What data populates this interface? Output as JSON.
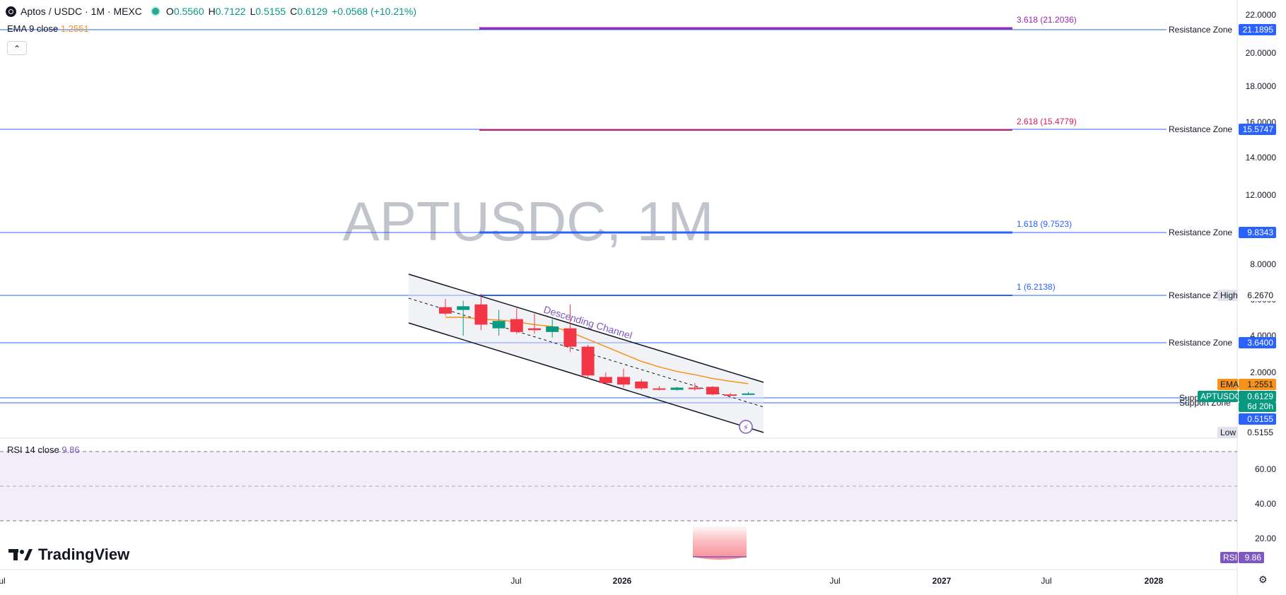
{
  "header": {
    "symbol": "Aptos / USDC · 1M · MEXC",
    "open_label": "O",
    "open": "0.5560",
    "high_label": "H",
    "high": "0.7122",
    "low_label": "L",
    "low": "0.5155",
    "close_label": "C",
    "close": "0.6129",
    "change": "+0.0568 (+10.21%)"
  },
  "ema_legend": {
    "label": "EMA 9 close",
    "value": "1.2551"
  },
  "rsi_legend": {
    "label": "RSI 14 close",
    "value": "9.86"
  },
  "watermark": "APTUSDC, 1M",
  "brand": "TradingView",
  "collapse_glyph": "⌃",
  "colors": {
    "bull": "#089981",
    "bear": "#f23645",
    "ema": "#f7931a",
    "zone_line": "#2962ff",
    "rsi": "#7e57c2",
    "fib_3618": "#9c27b0",
    "fib_2618": "#d81b60",
    "fib_1618": "#2962ff"
  },
  "chart_data": {
    "type": "candlestick",
    "symbol": "APTUSDC",
    "interval": "1M",
    "exchange": "MEXC",
    "y_axis_labels": [
      "22.0000",
      "20.0000",
      "18.0000",
      "16.0000",
      "14.0000",
      "12.0000",
      "8.0000",
      "6.0000",
      "4.0000",
      "2.0000"
    ],
    "x_axis_labels": [
      "Jul",
      "2026",
      "Jul",
      "2027",
      "Jul",
      "2028",
      "Jul"
    ],
    "candles": [
      {
        "o": 5.55,
        "h": 6.0,
        "l": 5.1,
        "c": 5.2
      },
      {
        "o": 5.4,
        "h": 5.9,
        "l": 4.0,
        "c": 5.6
      },
      {
        "o": 5.7,
        "h": 6.3,
        "l": 4.3,
        "c": 4.6
      },
      {
        "o": 4.4,
        "h": 5.4,
        "l": 4.0,
        "c": 4.8
      },
      {
        "o": 4.9,
        "h": 5.5,
        "l": 4.1,
        "c": 4.2
      },
      {
        "o": 4.4,
        "h": 5.2,
        "l": 4.1,
        "c": 4.3
      },
      {
        "o": 4.2,
        "h": 4.9,
        "l": 3.9,
        "c": 4.5
      },
      {
        "o": 4.4,
        "h": 5.7,
        "l": 3.1,
        "c": 3.4
      },
      {
        "o": 3.4,
        "h": 3.5,
        "l": 1.6,
        "c": 1.8
      },
      {
        "o": 1.7,
        "h": 2.0,
        "l": 1.2,
        "c": 1.3
      },
      {
        "o": 1.7,
        "h": 2.2,
        "l": 1.0,
        "c": 1.2
      },
      {
        "o": 1.4,
        "h": 1.55,
        "l": 0.85,
        "c": 0.95
      },
      {
        "o": 0.95,
        "h": 1.1,
        "l": 0.8,
        "c": 0.88
      },
      {
        "o": 0.85,
        "h": 1.05,
        "l": 0.8,
        "c": 1.0
      },
      {
        "o": 1.0,
        "h": 1.3,
        "l": 0.8,
        "c": 0.9
      },
      {
        "o": 1.05,
        "h": 1.1,
        "l": 0.5,
        "c": 0.55
      },
      {
        "o": 0.55,
        "h": 0.65,
        "l": 0.5,
        "c": 0.52
      },
      {
        "o": 0.556,
        "h": 0.7122,
        "l": 0.5155,
        "c": 0.6129
      }
    ],
    "ema": [
      5.0,
      5.0,
      4.9,
      4.85,
      4.75,
      4.6,
      4.5,
      4.2,
      3.8,
      3.4,
      3.0,
      2.6,
      2.3,
      2.05,
      1.85,
      1.6,
      1.42,
      1.2551
    ],
    "resistance_zones": [
      {
        "label": "Resistance Zone",
        "value": "21.1895"
      },
      {
        "label": "Resistance Zone",
        "value": "15.5747"
      },
      {
        "label": "Resistance Zone",
        "value": "9.8343"
      },
      {
        "label": "Resistance Zone",
        "value": "6.2670"
      },
      {
        "label": "Resistance Zone",
        "value": "3.6400"
      }
    ],
    "support_zones": [
      {
        "label": "Support Zone",
        "value": "0.6129"
      },
      {
        "label": "Support Zone",
        "value": "0.5155"
      }
    ],
    "fib_levels": [
      {
        "label": "3.618 (21.2036)",
        "value": 21.2036
      },
      {
        "label": "2.618 (15.4779)",
        "value": 15.4779
      },
      {
        "label": "1.618 (9.7523)",
        "value": 9.7523
      },
      {
        "label": "1 (6.2138)",
        "value": 6.2138
      }
    ],
    "channel_label": "Descending Channel",
    "price_tags": {
      "high_label": "High",
      "high_value": "6.2670",
      "ema_label": "EMA",
      "ema_value": "1.2551",
      "price_label": "APTUSDC",
      "price_value": "0.6129",
      "countdown": "6d 20h",
      "low_value_tag": "0.5155",
      "low_label": "Low",
      "low_value": "0.5155"
    },
    "rsi": {
      "y_axis_labels": [
        "60.00",
        "40.00",
        "20.00"
      ],
      "upper_band": 70,
      "lower_band": 30,
      "value": 9.86,
      "tag_label": "RSI",
      "tag_value": "9.86"
    }
  }
}
